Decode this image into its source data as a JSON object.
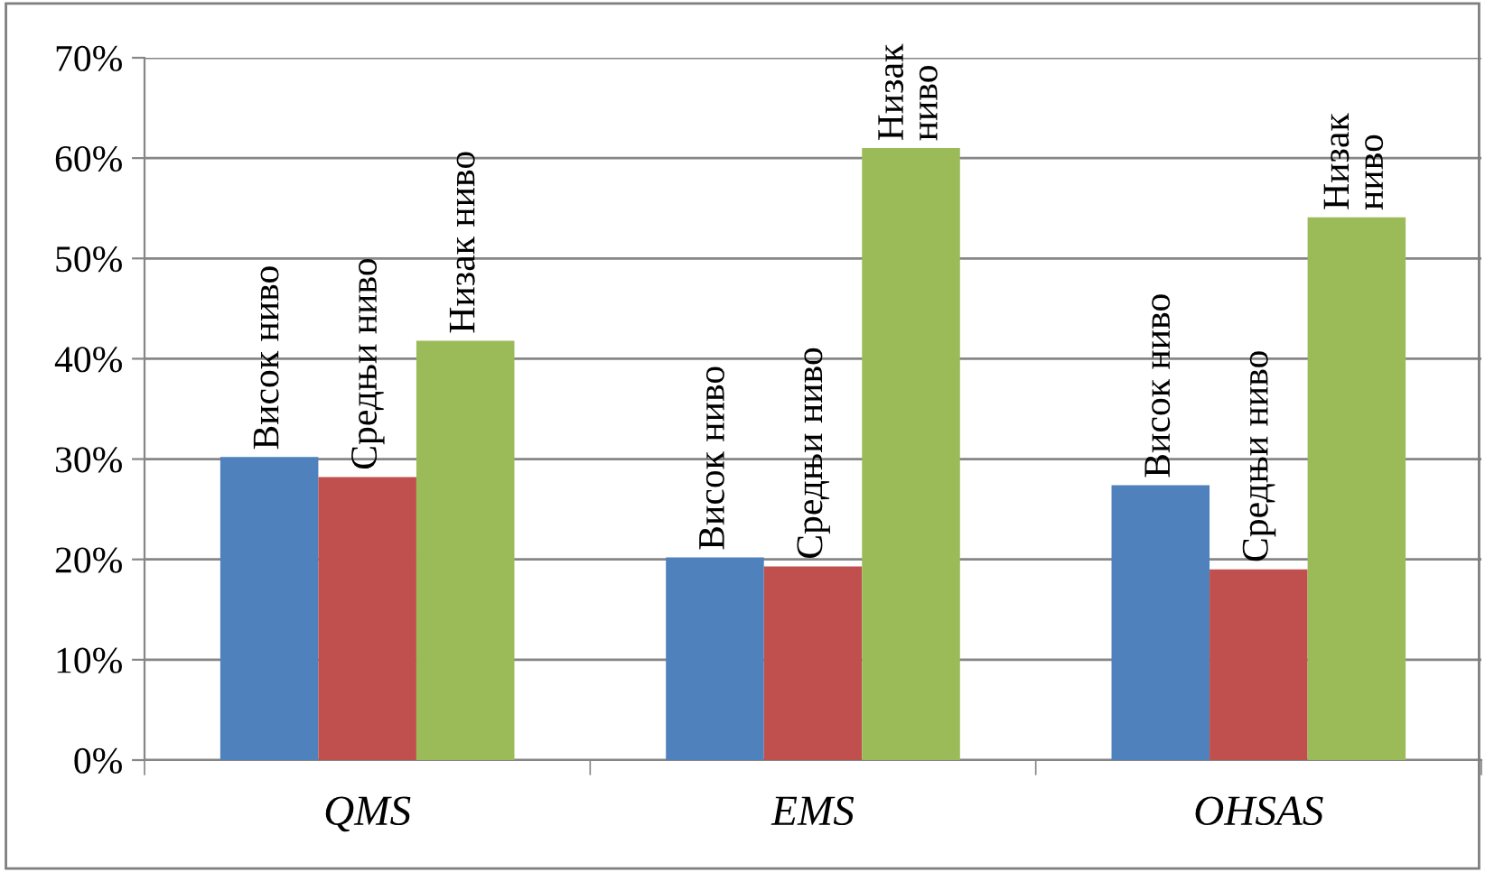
{
  "chart_data": {
    "type": "bar",
    "categories": [
      "QMS",
      "EMS",
      "OHSAS"
    ],
    "series": [
      {
        "name": "Висок ниво",
        "color": "#4f81bd",
        "values": [
          30.2,
          20.2,
          27.4
        ]
      },
      {
        "name": "Средњи ниво",
        "color": "#c0504d",
        "values": [
          28.2,
          19.3,
          19.0
        ]
      },
      {
        "name": "Низак ниво",
        "color": "#9bbb59",
        "values": [
          41.8,
          61.0,
          54.1
        ]
      }
    ],
    "ylim": [
      0,
      70
    ],
    "yticks": [
      {
        "value": 0,
        "label": "0%"
      },
      {
        "value": 10,
        "label": "10%"
      },
      {
        "value": 20,
        "label": "20%"
      },
      {
        "value": 30,
        "label": "30%"
      },
      {
        "value": 40,
        "label": "40%"
      },
      {
        "value": 50,
        "label": "50%"
      },
      {
        "value": 60,
        "label": "60%"
      },
      {
        "value": 70,
        "label": "70%"
      }
    ],
    "grid": "y",
    "legend": false
  }
}
